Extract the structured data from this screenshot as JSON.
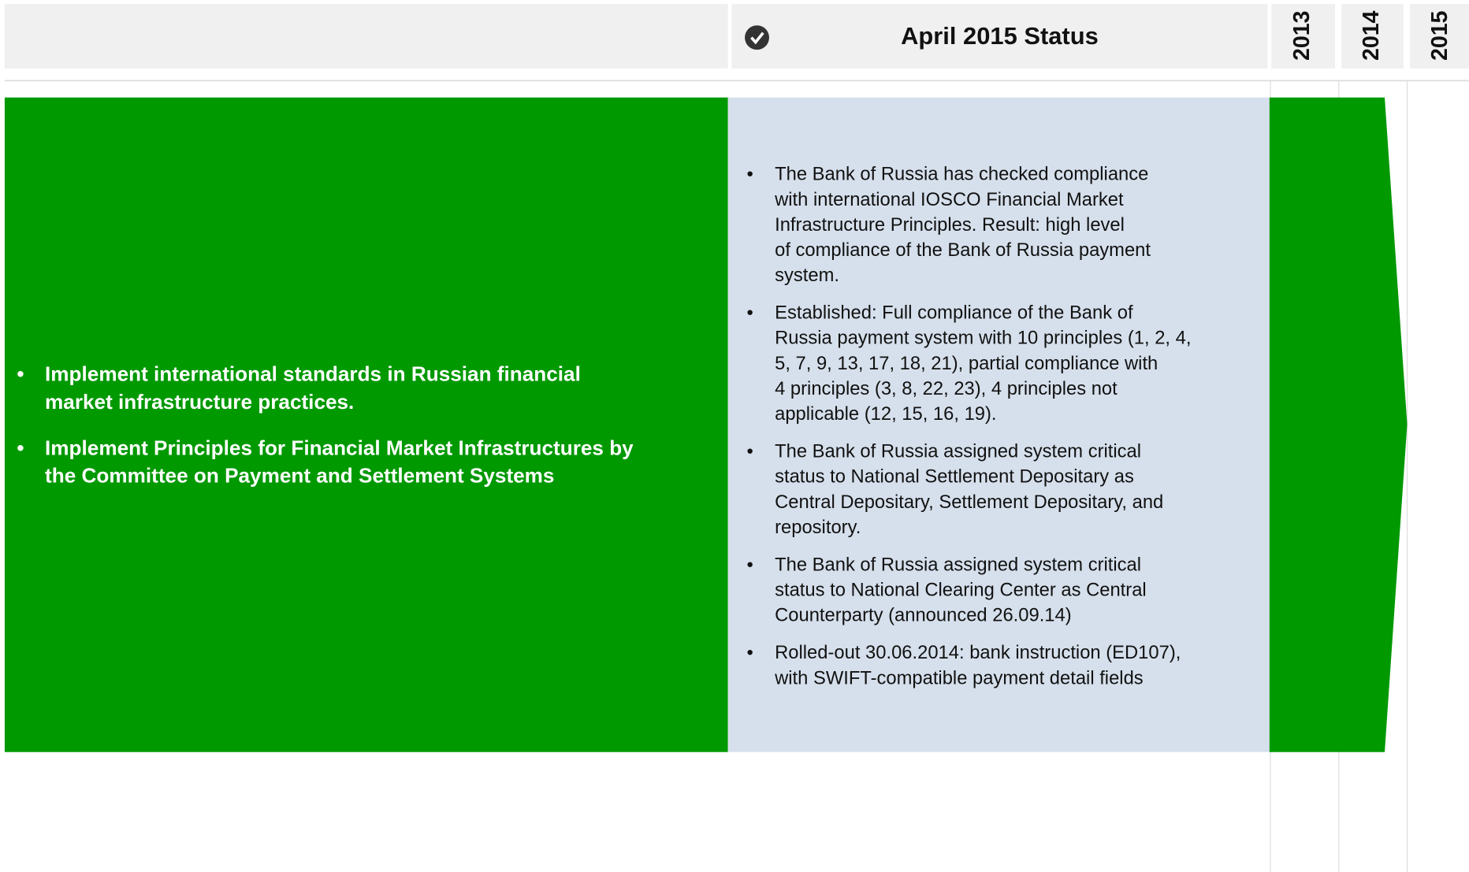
{
  "header": {
    "status_title": "April 2015 Status",
    "years": [
      "2013",
      "2014",
      "2015"
    ]
  },
  "objectives": [
    [
      "Implement international standards in Russian financial",
      "market infrastructure practices."
    ],
    [
      "Implement Principles for Financial Market Infrastructures  by",
      "the Committee on Payment and Settlement Systems"
    ]
  ],
  "status_items": [
    [
      "The Bank of Russia has checked compliance",
      "with international IOSCO Financial Market",
      "Infrastructure Principles. Result: high level",
      "of compliance of the Bank of Russia payment",
      "system."
    ],
    [
      "Established: Full compliance of the Bank of",
      "Russia payment system with 10 principles (1, 2, 4,",
      "5, 7, 9, 13, 17, 18, 21), partial compliance with",
      "4 principles (3, 8, 22, 23), 4 principles not",
      "applicable (12, 15, 16, 19)."
    ],
    [
      "The Bank of Russia assigned system critical",
      "status to National Settlement Depositary as",
      "Central Depositary, Settlement Depositary, and",
      "repository."
    ],
    [
      "The Bank of Russia assigned system critical",
      "status to National Clearing Center as Central",
      "Counterparty (announced 26.09.14)"
    ],
    [
      "Rolled-out 30.06.2014: bank instruction (ED107),",
      "with SWIFT-compatible  payment detail fields"
    ]
  ]
}
